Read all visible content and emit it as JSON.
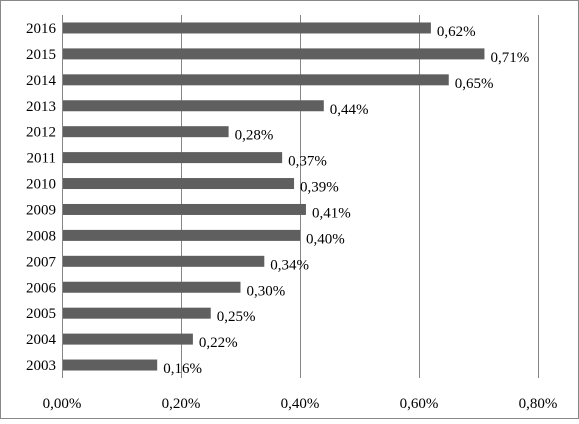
{
  "chart_data": {
    "type": "bar",
    "orientation": "horizontal",
    "categories": [
      "2016",
      "2015",
      "2014",
      "2013",
      "2012",
      "2011",
      "2010",
      "2009",
      "2008",
      "2007",
      "2006",
      "2005",
      "2004",
      "2003"
    ],
    "values": [
      0.62,
      0.71,
      0.65,
      0.44,
      0.28,
      0.37,
      0.39,
      0.41,
      0.4,
      0.34,
      0.3,
      0.25,
      0.22,
      0.16
    ],
    "value_labels": [
      "0,62%",
      "0,71%",
      "0,65%",
      "0,44%",
      "0,28%",
      "0,37%",
      "0,39%",
      "0,41%",
      "0,40%",
      "0,34%",
      "0,30%",
      "0,25%",
      "0,22%",
      "0,16%"
    ],
    "xlim": [
      0,
      0.8
    ],
    "x_ticks": [
      0,
      0.2,
      0.4,
      0.6,
      0.8
    ],
    "x_tick_labels": [
      "0,00%",
      "0,20%",
      "0,40%",
      "0,60%",
      "0,80%"
    ],
    "grid": "vertical",
    "legend": "none",
    "bar_color": "#5f5f5f",
    "grid_color": "#868686",
    "frame_color": "#888888"
  }
}
